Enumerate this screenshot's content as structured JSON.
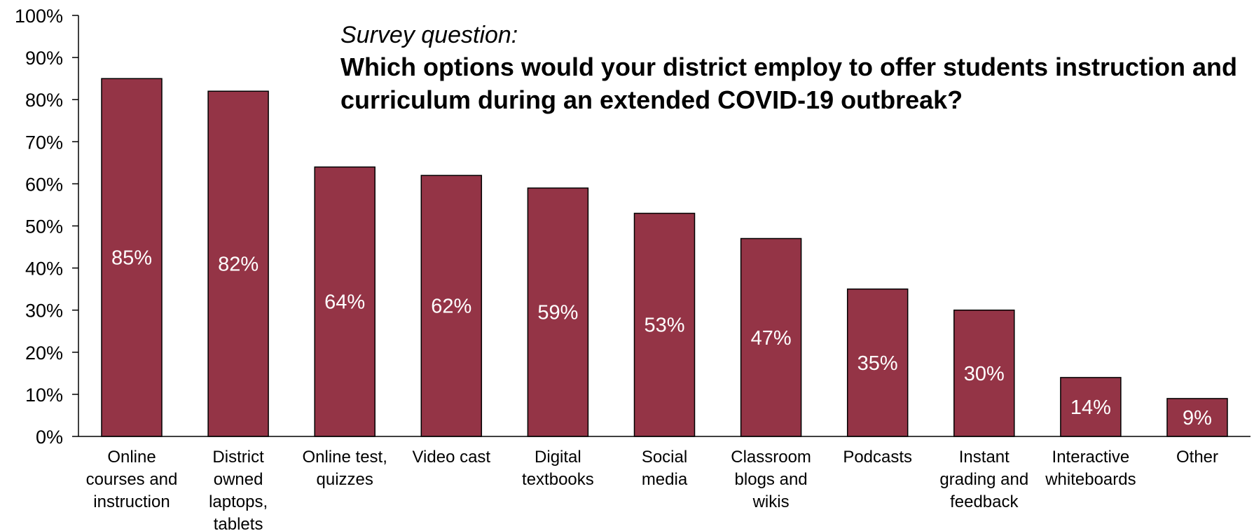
{
  "annotation": {
    "subtitle": "Survey question:",
    "question": "Which options would your district employ to offer students instruction and curriculum during an extended COVID-19 outbreak?"
  },
  "colors": {
    "bar": "#943446",
    "axis": "#000000",
    "data_label": "#ffffff"
  },
  "chart_data": {
    "type": "bar",
    "title": "",
    "xlabel": "",
    "ylabel": "",
    "categories": [
      "Online courses and instruction",
      "District owned laptops, tablets",
      "Online test, quizzes",
      "Video cast",
      "Digital textbooks",
      "Social media",
      "Classroom blogs and wikis",
      "Podcasts",
      "Instant grading and feedback",
      "Interactive whiteboards",
      "Other"
    ],
    "category_lines": [
      [
        "Online",
        "courses and",
        "instruction"
      ],
      [
        "District",
        "owned",
        "laptops,",
        "tablets"
      ],
      [
        "Online test,",
        "quizzes"
      ],
      [
        "Video cast"
      ],
      [
        "Digital",
        "textbooks"
      ],
      [
        "Social",
        "media"
      ],
      [
        "Classroom",
        "blogs and",
        "wikis"
      ],
      [
        "Podcasts"
      ],
      [
        "Instant",
        "grading and",
        "feedback"
      ],
      [
        "Interactive",
        "whiteboards"
      ],
      [
        "Other"
      ]
    ],
    "values": [
      85,
      82,
      64,
      62,
      59,
      53,
      47,
      35,
      30,
      14,
      9
    ],
    "data_labels": [
      "85%",
      "82%",
      "64%",
      "62%",
      "59%",
      "53%",
      "47%",
      "35%",
      "30%",
      "14%",
      "9%"
    ],
    "ylim": [
      0,
      100
    ],
    "yticks": [
      0,
      10,
      20,
      30,
      40,
      50,
      60,
      70,
      80,
      90,
      100
    ],
    "ytick_labels": [
      "0%",
      "10%",
      "20%",
      "30%",
      "40%",
      "50%",
      "60%",
      "70%",
      "80%",
      "90%",
      "100%"
    ],
    "grid": false,
    "legend": "none"
  }
}
